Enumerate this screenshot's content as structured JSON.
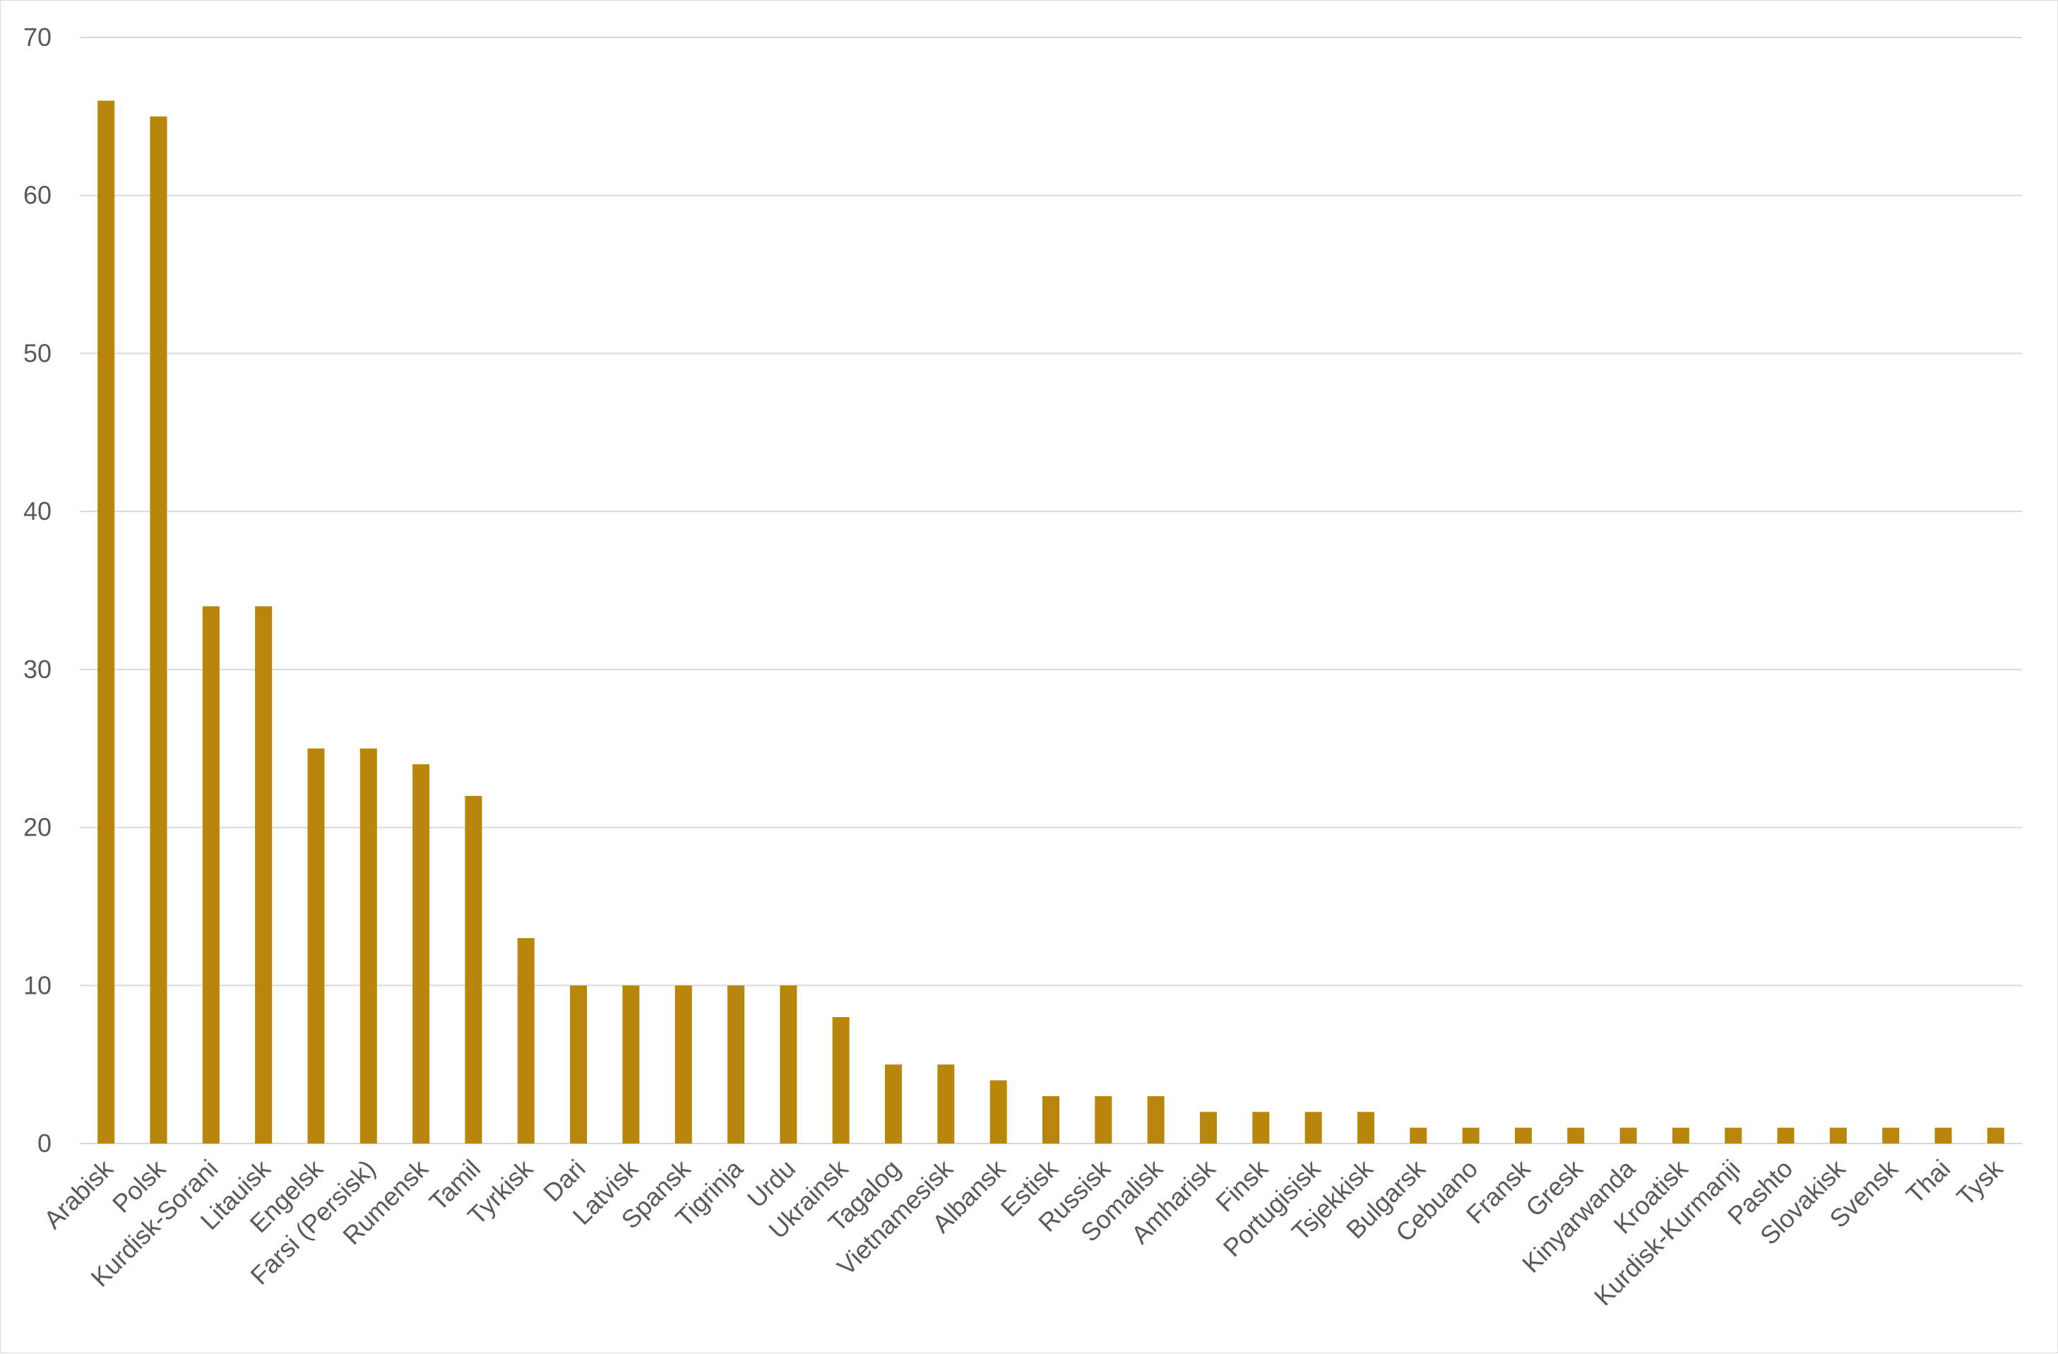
{
  "chart_data": {
    "type": "bar",
    "title": "",
    "xlabel": "",
    "ylabel": "",
    "ylim": [
      0,
      70
    ],
    "yticks": [
      0,
      10,
      20,
      30,
      40,
      50,
      60,
      70
    ],
    "grid": true,
    "legend": "none",
    "bar_color": "#B8860B",
    "categories": [
      "Arabisk",
      "Polsk",
      "Kurdisk-Sorani",
      "Litauisk",
      "Engelsk",
      "Farsi (Persisk)",
      "Rumensk",
      "Tamil",
      "Tyrkisk",
      "Dari",
      "Latvisk",
      "Spansk",
      "Tigrinja",
      "Urdu",
      "Ukrainsk",
      "Tagalog",
      "Vietnamesisk",
      "Albansk",
      "Estisk",
      "Russisk",
      "Somalisk",
      "Amharisk",
      "Finsk",
      "Portugisisk",
      "Tsjekkisk",
      "Bulgarsk",
      "Cebuano",
      "Fransk",
      "Gresk",
      "Kinyarwanda",
      "Kroatisk",
      "Kurdisk-Kurmanji",
      "Pashto",
      "Slovakisk",
      "Svensk",
      "Thai",
      "Tysk"
    ],
    "values": [
      66,
      65,
      34,
      34,
      25,
      25,
      24,
      22,
      13,
      10,
      10,
      10,
      10,
      10,
      8,
      5,
      5,
      4,
      3,
      3,
      3,
      2,
      2,
      2,
      2,
      1,
      1,
      1,
      1,
      1,
      1,
      1,
      1,
      1,
      1,
      1,
      1
    ]
  }
}
